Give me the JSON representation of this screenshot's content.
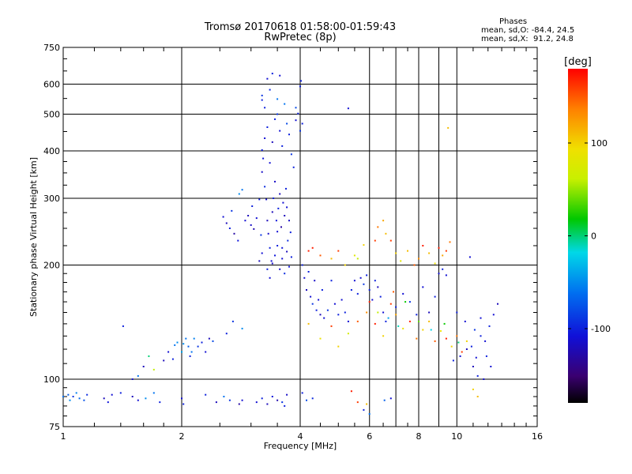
{
  "chart_data": {
    "type": "scatter",
    "title": "Tromsø 20170618 01:58:00-01:59:43",
    "subtitle": "RwPretec (8p)",
    "xlabel": "Frequency [MHz]",
    "ylabel": "Stationary phase Virtual Height [km]",
    "x_scale": "log",
    "y_scale": "log",
    "xlim": [
      1,
      16
    ],
    "ylim": [
      75,
      750
    ],
    "grid": true,
    "xticks": [
      1,
      2,
      4,
      6,
      8,
      10,
      16
    ],
    "xtick_labels": [
      "1",
      "2",
      "4",
      "6",
      "8",
      "10",
      "16"
    ],
    "yticks": [
      75,
      100,
      200,
      300,
      400,
      500,
      600,
      750
    ],
    "ytick_labels": [
      "75",
      "100",
      "200",
      "300",
      "400",
      "500",
      "600",
      "750"
    ],
    "phases_header": "Phases",
    "phases_o": "mean, sd,O: -84.4, 24.5",
    "phases_x": "mean, sd,X:  91.2, 24.8",
    "colorbar": {
      "label": "[deg]",
      "ticks": [
        100,
        0,
        -100
      ],
      "tick_labels": [
        "100",
        "0",
        "-100"
      ],
      "range": [
        -180,
        180
      ]
    },
    "points": [
      [
        1.0,
        90,
        -60
      ],
      [
        1.03,
        91,
        -70
      ],
      [
        1.06,
        90,
        -90
      ],
      [
        1.08,
        92,
        -55
      ],
      [
        1.1,
        89,
        -65
      ],
      [
        1.13,
        88,
        -75
      ],
      [
        1.15,
        91,
        -95
      ],
      [
        1.04,
        88,
        -50
      ],
      [
        1.27,
        89,
        -120
      ],
      [
        1.3,
        87,
        -105
      ],
      [
        1.33,
        91,
        -110
      ],
      [
        1.4,
        92,
        -100
      ],
      [
        1.5,
        90,
        -120
      ],
      [
        1.55,
        88,
        -110
      ],
      [
        1.62,
        89,
        -50
      ],
      [
        1.7,
        92,
        -60
      ],
      [
        1.76,
        87,
        -100
      ],
      [
        2.0,
        89,
        -110
      ],
      [
        2.02,
        86,
        -100
      ],
      [
        2.3,
        91,
        -100
      ],
      [
        2.45,
        87,
        -120
      ],
      [
        2.56,
        90,
        -60
      ],
      [
        2.65,
        88,
        -90
      ],
      [
        2.8,
        86,
        -130
      ],
      [
        2.85,
        88,
        -110
      ],
      [
        3.1,
        87,
        -110
      ],
      [
        3.2,
        89,
        -100
      ],
      [
        3.3,
        86,
        -120
      ],
      [
        3.4,
        90,
        -105
      ],
      [
        3.5,
        88,
        -125
      ],
      [
        3.6,
        87,
        -90
      ],
      [
        3.7,
        91,
        -115
      ],
      [
        3.65,
        85,
        -100
      ],
      [
        4.05,
        92,
        -100
      ],
      [
        4.15,
        88,
        -80
      ],
      [
        4.3,
        89,
        -95
      ],
      [
        5.4,
        93,
        170
      ],
      [
        5.6,
        87,
        160
      ],
      [
        5.9,
        86,
        110
      ],
      [
        5.8,
        83,
        -100
      ],
      [
        6.0,
        81,
        -60
      ],
      [
        6.55,
        88,
        -70
      ],
      [
        6.8,
        89,
        -110
      ],
      [
        11.0,
        94,
        100
      ],
      [
        11.3,
        90,
        110
      ],
      [
        1.42,
        138,
        -100
      ],
      [
        1.5,
        100,
        -110
      ],
      [
        1.55,
        102,
        -60
      ],
      [
        1.6,
        108,
        -120
      ],
      [
        1.65,
        115,
        0
      ],
      [
        1.7,
        106,
        60
      ],
      [
        1.8,
        112,
        -120
      ],
      [
        1.85,
        118,
        -110
      ],
      [
        1.9,
        113,
        -100
      ],
      [
        1.92,
        123,
        -60
      ],
      [
        1.95,
        125,
        -50
      ],
      [
        2.0,
        118,
        -40
      ],
      [
        2.02,
        124,
        -50
      ],
      [
        2.05,
        128,
        -60
      ],
      [
        2.08,
        122,
        -70
      ],
      [
        2.1,
        115,
        -100
      ],
      [
        2.12,
        118,
        -60
      ],
      [
        2.15,
        128,
        -55
      ],
      [
        2.2,
        122,
        -90
      ],
      [
        2.25,
        125,
        -100
      ],
      [
        2.3,
        118,
        -110
      ],
      [
        2.35,
        128,
        -120
      ],
      [
        2.4,
        126,
        -80
      ],
      [
        2.6,
        132,
        -100
      ],
      [
        2.7,
        142,
        -90
      ],
      [
        2.85,
        136,
        -50
      ],
      [
        2.55,
        268,
        -110
      ],
      [
        2.6,
        258,
        -120
      ],
      [
        2.65,
        250,
        -100
      ],
      [
        2.68,
        278,
        -90
      ],
      [
        2.72,
        242,
        -130
      ],
      [
        2.78,
        232,
        -105
      ],
      [
        2.8,
        308,
        -50
      ],
      [
        2.85,
        316,
        -60
      ],
      [
        2.9,
        262,
        -110
      ],
      [
        2.95,
        270,
        -120
      ],
      [
        3.0,
        255,
        -115
      ],
      [
        3.02,
        286,
        -100
      ],
      [
        3.05,
        249,
        -125
      ],
      [
        3.1,
        266,
        -110
      ],
      [
        3.15,
        298,
        -100
      ],
      [
        3.18,
        240,
        -90
      ],
      [
        3.2,
        352,
        -115
      ],
      [
        3.22,
        382,
        -105
      ],
      [
        3.25,
        322,
        -95
      ],
      [
        3.28,
        298,
        -110
      ],
      [
        3.3,
        262,
        -120
      ],
      [
        3.32,
        242,
        -115
      ],
      [
        3.35,
        222,
        -100
      ],
      [
        3.38,
        205,
        -110
      ],
      [
        3.4,
        276,
        -120
      ],
      [
        3.42,
        300,
        -100
      ],
      [
        3.45,
        332,
        -115
      ],
      [
        3.48,
        262,
        -105
      ],
      [
        3.5,
        245,
        -110
      ],
      [
        3.52,
        282,
        -100
      ],
      [
        3.55,
        308,
        -120
      ],
      [
        3.58,
        252,
        -130
      ],
      [
        3.6,
        222,
        -105
      ],
      [
        3.62,
        292,
        -110
      ],
      [
        3.65,
        270,
        -120
      ],
      [
        3.68,
        318,
        -100
      ],
      [
        3.7,
        284,
        -110
      ],
      [
        3.72,
        232,
        -95
      ],
      [
        3.75,
        262,
        -115
      ],
      [
        3.78,
        244,
        -100
      ],
      [
        3.15,
        205,
        -120
      ],
      [
        3.2,
        215,
        -110
      ],
      [
        3.3,
        195,
        -100
      ],
      [
        3.35,
        185,
        -110
      ],
      [
        3.4,
        202,
        -115
      ],
      [
        3.45,
        212,
        -105
      ],
      [
        3.5,
        225,
        -100
      ],
      [
        3.55,
        195,
        -115
      ],
      [
        3.6,
        208,
        -110
      ],
      [
        3.65,
        190,
        -95
      ],
      [
        3.7,
        217,
        -120
      ],
      [
        3.75,
        198,
        -105
      ],
      [
        3.8,
        210,
        -100
      ],
      [
        3.2,
        402,
        -100
      ],
      [
        3.25,
        432,
        -110
      ],
      [
        3.3,
        462,
        -100
      ],
      [
        3.35,
        372,
        -110
      ],
      [
        3.4,
        422,
        -120
      ],
      [
        3.45,
        485,
        -100
      ],
      [
        3.5,
        500,
        -90
      ],
      [
        3.55,
        452,
        -110
      ],
      [
        3.6,
        412,
        -100
      ],
      [
        3.65,
        532,
        -60
      ],
      [
        3.7,
        472,
        -80
      ],
      [
        3.75,
        442,
        -100
      ],
      [
        3.8,
        392,
        -90
      ],
      [
        3.85,
        362,
        -100
      ],
      [
        3.9,
        482,
        -110
      ],
      [
        3.95,
        502,
        -100
      ],
      [
        4.0,
        452,
        -90
      ],
      [
        4.05,
        472,
        -100
      ],
      [
        3.3,
        620,
        -110
      ],
      [
        3.4,
        640,
        -100
      ],
      [
        3.55,
        632,
        -110
      ],
      [
        3.2,
        560,
        -90
      ],
      [
        3.25,
        520,
        -100
      ],
      [
        3.5,
        548,
        -60
      ],
      [
        3.9,
        520,
        -80
      ],
      [
        4.02,
        612,
        -100
      ],
      [
        5.3,
        518,
        -110
      ],
      [
        3.2,
        545,
        -100
      ],
      [
        3.35,
        580,
        -95
      ],
      [
        4.0,
        592,
        -100
      ],
      [
        4.05,
        200,
        -100
      ],
      [
        4.1,
        185,
        -110
      ],
      [
        4.15,
        172,
        -120
      ],
      [
        4.2,
        192,
        -100
      ],
      [
        4.25,
        165,
        -110
      ],
      [
        4.3,
        158,
        -90
      ],
      [
        4.35,
        182,
        -115
      ],
      [
        4.4,
        152,
        -100
      ],
      [
        4.45,
        162,
        -110
      ],
      [
        4.5,
        148,
        -120
      ],
      [
        4.55,
        172,
        -100
      ],
      [
        4.6,
        145,
        -110
      ],
      [
        4.7,
        152,
        -90
      ],
      [
        4.8,
        182,
        -100
      ],
      [
        4.9,
        158,
        -110
      ],
      [
        5.0,
        148,
        -100
      ],
      [
        5.1,
        162,
        -110
      ],
      [
        5.2,
        150,
        -100
      ],
      [
        5.3,
        142,
        -110
      ],
      [
        5.4,
        172,
        -100
      ],
      [
        5.5,
        182,
        -110
      ],
      [
        5.6,
        168,
        -100
      ],
      [
        5.7,
        185,
        -110
      ],
      [
        5.8,
        178,
        -90
      ],
      [
        5.9,
        188,
        -100
      ],
      [
        6.0,
        172,
        -100
      ],
      [
        6.1,
        162,
        -110
      ],
      [
        6.2,
        182,
        -100
      ],
      [
        6.3,
        175,
        -120
      ],
      [
        6.4,
        165,
        -100
      ],
      [
        6.5,
        150,
        -110
      ],
      [
        6.6,
        142,
        -100
      ],
      [
        4.2,
        218,
        170
      ],
      [
        4.3,
        222,
        170
      ],
      [
        4.5,
        212,
        150
      ],
      [
        4.8,
        208,
        110
      ],
      [
        5.0,
        218,
        160
      ],
      [
        5.2,
        200,
        100
      ],
      [
        5.5,
        212,
        80
      ],
      [
        5.6,
        208,
        60
      ],
      [
        5.8,
        226,
        100
      ],
      [
        6.2,
        232,
        160
      ],
      [
        6.3,
        252,
        140
      ],
      [
        6.5,
        262,
        120
      ],
      [
        6.6,
        242,
        110
      ],
      [
        6.8,
        232,
        160
      ],
      [
        7.0,
        215,
        100
      ],
      [
        7.2,
        205,
        80
      ],
      [
        7.5,
        218,
        110
      ],
      [
        7.8,
        200,
        150
      ],
      [
        8.0,
        208,
        130
      ],
      [
        8.2,
        225,
        170
      ],
      [
        8.5,
        215,
        110
      ],
      [
        8.8,
        202,
        90
      ],
      [
        9.0,
        222,
        170
      ],
      [
        9.2,
        212,
        120
      ],
      [
        9.4,
        218,
        160
      ],
      [
        9.6,
        230,
        140
      ],
      [
        9.5,
        460,
        110
      ],
      [
        4.2,
        140,
        110
      ],
      [
        4.5,
        128,
        90
      ],
      [
        4.8,
        138,
        160
      ],
      [
        5.0,
        122,
        100
      ],
      [
        5.3,
        132,
        70
      ],
      [
        5.6,
        142,
        150
      ],
      [
        5.9,
        150,
        130
      ],
      [
        6.2,
        140,
        170
      ],
      [
        6.5,
        130,
        100
      ],
      [
        6.8,
        158,
        160
      ],
      [
        7.0,
        148,
        120
      ],
      [
        7.3,
        136,
        90
      ],
      [
        7.6,
        142,
        170
      ],
      [
        7.9,
        128,
        140
      ],
      [
        8.2,
        135,
        100
      ],
      [
        8.5,
        142,
        110
      ],
      [
        8.8,
        126,
        150
      ],
      [
        9.1,
        134,
        90
      ],
      [
        9.4,
        128,
        170
      ],
      [
        9.7,
        122,
        100
      ],
      [
        10.0,
        130,
        140
      ],
      [
        10.3,
        118,
        160
      ],
      [
        10.6,
        126,
        100
      ],
      [
        10.9,
        122,
        -100
      ],
      [
        11.2,
        114,
        -110
      ],
      [
        11.5,
        130,
        -100
      ],
      [
        11.8,
        126,
        -110
      ],
      [
        12.1,
        138,
        -100
      ],
      [
        12.4,
        148,
        -110
      ],
      [
        12.7,
        158,
        -120
      ],
      [
        10.8,
        210,
        -110
      ],
      [
        7.0,
        155,
        -100
      ],
      [
        7.3,
        168,
        -110
      ],
      [
        7.6,
        160,
        -90
      ],
      [
        7.9,
        148,
        -100
      ],
      [
        8.2,
        175,
        -110
      ],
      [
        8.5,
        150,
        -120
      ],
      [
        8.8,
        165,
        -100
      ],
      [
        9.0,
        190,
        -110
      ],
      [
        9.2,
        195,
        -100
      ],
      [
        9.4,
        188,
        -110
      ],
      [
        10.0,
        150,
        -100
      ],
      [
        10.5,
        142,
        -110
      ],
      [
        11.0,
        108,
        -120
      ],
      [
        11.3,
        102,
        -100
      ],
      [
        11.7,
        100,
        -110
      ],
      [
        9.8,
        112,
        -100
      ],
      [
        10.2,
        115,
        -110
      ],
      [
        10.6,
        120,
        -120
      ],
      [
        11.1,
        135,
        -90
      ],
      [
        11.5,
        145,
        -110
      ],
      [
        11.9,
        115,
        -100
      ],
      [
        12.2,
        108,
        -110
      ],
      [
        6.3,
        150,
        60
      ],
      [
        6.7,
        145,
        -40
      ],
      [
        7.1,
        138,
        -10
      ],
      [
        7.4,
        160,
        20
      ],
      [
        8.0,
        142,
        40
      ],
      [
        8.6,
        135,
        -20
      ],
      [
        9.3,
        140,
        20
      ],
      [
        10.1,
        125,
        0
      ],
      [
        6.0,
        160,
        170
      ],
      [
        6.9,
        170,
        150
      ]
    ]
  }
}
